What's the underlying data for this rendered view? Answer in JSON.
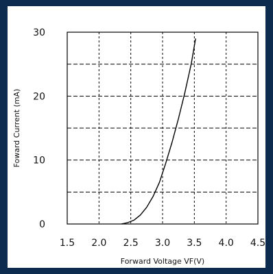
{
  "chart_data": {
    "type": "line",
    "title": "",
    "xlabel": "Forward Voltage  VF(V)",
    "ylabel": "Foward Current (mA)",
    "xlim": [
      1.5,
      4.5
    ],
    "ylim": [
      0,
      30
    ],
    "x_ticks": [
      1.5,
      2.0,
      2.5,
      3.0,
      3.5,
      4.0,
      4.5
    ],
    "x_tick_labels": [
      "1.5",
      "2.0",
      "2.5",
      "3.0",
      "3.5",
      "4.0",
      "4.5"
    ],
    "y_ticks": [
      0,
      10,
      20,
      30
    ],
    "y_tick_labels": [
      "0",
      "10",
      "20",
      "30"
    ],
    "grid": true,
    "grid_style": "dashed",
    "series": [
      {
        "x": [
          2.35,
          2.45,
          2.55,
          2.65,
          2.75,
          2.85,
          2.95,
          3.05,
          3.15,
          3.25,
          3.35,
          3.45,
          3.52
        ],
        "y": [
          0,
          0.2,
          0.6,
          1.4,
          2.6,
          4.3,
          6.5,
          9.5,
          12.8,
          16.5,
          20.5,
          25.0,
          29.0
        ]
      }
    ]
  },
  "colors": {
    "background_border": "#0d2b4e",
    "plot_background": "#ffffff",
    "curve": "#000000",
    "grid": "#000000"
  }
}
